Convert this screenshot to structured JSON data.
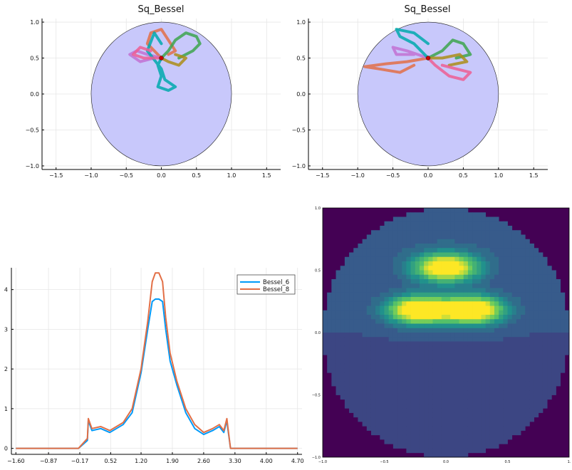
{
  "chart_data": [
    {
      "type": "scatter",
      "title": "Sq_Bessel",
      "xlim": [
        -1.7,
        1.7
      ],
      "ylim": [
        -1.05,
        1.05
      ],
      "xticks": [
        "-1.5",
        "-1.0",
        "-0.5",
        "0.0",
        "0.5",
        "1.0",
        "1.5"
      ],
      "yticks": [
        "1.0",
        "0.5",
        "0.0",
        "-0.5",
        "-1.0"
      ],
      "disk": {
        "center": [
          0,
          0
        ],
        "radius": 1.0,
        "color": "#c8c8fb"
      },
      "start_point": {
        "x": 0.0,
        "y": 0.5,
        "color": "#cc0000"
      },
      "paths": [
        {
          "color": "#e26f46",
          "points": [
            [
              0,
              0.5
            ],
            [
              -0.1,
              0.6
            ],
            [
              -0.2,
              0.7
            ],
            [
              -0.15,
              0.85
            ],
            [
              0.0,
              0.9
            ],
            [
              0.1,
              0.75
            ],
            [
              0.2,
              0.6
            ],
            [
              0.1,
              0.55
            ]
          ]
        },
        {
          "color": "#3da44d",
          "points": [
            [
              0,
              0.5
            ],
            [
              0.1,
              0.6
            ],
            [
              0.2,
              0.75
            ],
            [
              0.35,
              0.85
            ],
            [
              0.5,
              0.8
            ],
            [
              0.55,
              0.7
            ],
            [
              0.45,
              0.6
            ],
            [
              0.25,
              0.5
            ]
          ]
        },
        {
          "color": "#c271d2",
          "points": [
            [
              0,
              0.5
            ],
            [
              -0.2,
              0.55
            ],
            [
              -0.35,
              0.6
            ],
            [
              -0.45,
              0.55
            ],
            [
              -0.3,
              0.45
            ],
            [
              -0.1,
              0.5
            ]
          ]
        },
        {
          "color": "#ac8d18",
          "points": [
            [
              0,
              0.5
            ],
            [
              0.1,
              0.45
            ],
            [
              0.25,
              0.4
            ],
            [
              0.35,
              0.5
            ],
            [
              0.2,
              0.55
            ]
          ]
        },
        {
          "color": "#00a9ad",
          "points": [
            [
              0,
              0.5
            ],
            [
              -0.05,
              0.4
            ],
            [
              0.0,
              0.25
            ],
            [
              -0.05,
              0.1
            ],
            [
              0.1,
              0.05
            ],
            [
              0.2,
              0.1
            ],
            [
              0.05,
              0.2
            ],
            [
              0.0,
              0.35
            ],
            [
              -0.2,
              0.6
            ],
            [
              -0.1,
              0.85
            ],
            [
              0.0,
              0.7
            ]
          ]
        },
        {
          "color": "#ed5e93",
          "points": [
            [
              0,
              0.5
            ],
            [
              -0.25,
              0.5
            ],
            [
              -0.4,
              0.55
            ],
            [
              -0.3,
              0.65
            ],
            [
              -0.15,
              0.6
            ]
          ]
        }
      ]
    },
    {
      "type": "scatter",
      "title": "Sq_Bessel",
      "xlim": [
        -1.7,
        1.7
      ],
      "ylim": [
        -1.05,
        1.05
      ],
      "xticks": [
        "-1.5",
        "-1.0",
        "-0.5",
        "0.0",
        "0.5",
        "1.0",
        "1.5"
      ],
      "yticks": [
        "1.0",
        "0.5",
        "0.0",
        "-0.5",
        "-1.0"
      ],
      "disk": {
        "center": [
          0,
          0
        ],
        "radius": 1.0,
        "color": "#c8c8fb"
      },
      "start_point": {
        "x": 0.0,
        "y": 0.5,
        "color": "#cc0000"
      },
      "paths": [
        {
          "color": "#e26f46",
          "points": [
            [
              0,
              0.5
            ],
            [
              -0.3,
              0.45
            ],
            [
              -0.6,
              0.42
            ],
            [
              -0.9,
              0.38
            ],
            [
              -0.7,
              0.35
            ],
            [
              -0.4,
              0.3
            ],
            [
              -0.2,
              0.4
            ]
          ]
        },
        {
          "color": "#3da44d",
          "points": [
            [
              0,
              0.5
            ],
            [
              0.2,
              0.6
            ],
            [
              0.35,
              0.75
            ],
            [
              0.5,
              0.7
            ],
            [
              0.6,
              0.55
            ],
            [
              0.4,
              0.5
            ]
          ]
        },
        {
          "color": "#c271d2",
          "points": [
            [
              0,
              0.5
            ],
            [
              -0.3,
              0.6
            ],
            [
              -0.5,
              0.65
            ],
            [
              -0.45,
              0.55
            ],
            [
              -0.2,
              0.55
            ]
          ]
        },
        {
          "color": "#ac8d18",
          "points": [
            [
              0,
              0.5
            ],
            [
              0.2,
              0.5
            ],
            [
              0.45,
              0.55
            ],
            [
              0.55,
              0.45
            ],
            [
              0.3,
              0.4
            ]
          ]
        },
        {
          "color": "#00a9ad",
          "points": [
            [
              0,
              0.5
            ],
            [
              -0.2,
              0.7
            ],
            [
              -0.4,
              0.8
            ],
            [
              -0.45,
              0.9
            ],
            [
              -0.2,
              0.85
            ],
            [
              0.0,
              0.7
            ]
          ]
        },
        {
          "color": "#ed5e93",
          "points": [
            [
              0,
              0.5
            ],
            [
              0.1,
              0.4
            ],
            [
              0.3,
              0.25
            ],
            [
              0.5,
              0.2
            ],
            [
              0.6,
              0.3
            ],
            [
              0.4,
              0.35
            ],
            [
              0.2,
              0.4
            ]
          ]
        }
      ]
    },
    {
      "type": "line",
      "title": "",
      "xlim": [
        -1.7,
        4.8
      ],
      "ylim": [
        -0.15,
        4.55
      ],
      "xticks": [
        -1.6,
        -0.87,
        -0.17,
        0.52,
        1.2,
        1.9,
        2.6,
        3.3,
        4.0,
        4.7
      ],
      "xtick_labels": [
        "-1.60",
        "-0.87",
        "-0.17",
        "0.52",
        "1.20",
        "1.90",
        "2.60",
        "3.30",
        "4.00",
        "4.70"
      ],
      "yticks": [
        0,
        1,
        2,
        3,
        4
      ],
      "legend": "top-right",
      "series": [
        {
          "name": "Bessel_6",
          "color": "#009af9",
          "x": [
            -1.6,
            -0.2,
            0.0,
            0.02,
            0.1,
            0.3,
            0.5,
            0.8,
            1.0,
            1.2,
            1.35,
            1.45,
            1.52,
            1.6,
            1.68,
            1.75,
            1.85,
            2.0,
            2.2,
            2.4,
            2.6,
            2.8,
            2.95,
            3.05,
            3.12,
            3.14,
            3.2,
            4.7
          ],
          "values": [
            0,
            0,
            0.2,
            0.7,
            0.45,
            0.5,
            0.4,
            0.6,
            0.9,
            1.9,
            3.0,
            3.7,
            3.76,
            3.76,
            3.7,
            3.0,
            2.2,
            1.6,
            0.9,
            0.5,
            0.35,
            0.45,
            0.55,
            0.4,
            0.7,
            0.5,
            0,
            0
          ]
        },
        {
          "name": "Bessel_8",
          "color": "#e26f46",
          "x": [
            -1.6,
            -0.2,
            0.0,
            0.02,
            0.1,
            0.3,
            0.5,
            0.8,
            1.0,
            1.2,
            1.35,
            1.45,
            1.52,
            1.6,
            1.68,
            1.75,
            1.85,
            2.0,
            2.2,
            2.4,
            2.6,
            2.8,
            2.95,
            3.05,
            3.12,
            3.14,
            3.2,
            4.7
          ],
          "values": [
            0,
            0,
            0.25,
            0.75,
            0.5,
            0.55,
            0.45,
            0.65,
            1.0,
            2.0,
            3.2,
            4.2,
            4.42,
            4.42,
            4.2,
            3.3,
            2.4,
            1.7,
            1.0,
            0.6,
            0.4,
            0.5,
            0.6,
            0.45,
            0.75,
            0.55,
            0,
            0
          ]
        }
      ]
    },
    {
      "type": "heatmap",
      "title": "",
      "xlim": [
        -1.0,
        1.0
      ],
      "ylim": [
        -1.0,
        1.0
      ],
      "xticks": [
        "-1.0",
        "-0.5",
        "0.0",
        "0.5",
        "1."
      ],
      "yticks": [
        "1.0",
        "0.5",
        "0.0",
        "-0.5",
        "-1.0"
      ],
      "background_color": "#440154",
      "colormap": [
        "#440154",
        "#3b528b",
        "#21918c",
        "#5ec962",
        "#fde725"
      ],
      "peaks": [
        {
          "x": 0.0,
          "y": 0.52,
          "intensity": 0.95
        },
        {
          "x": -0.22,
          "y": 0.18,
          "intensity": 1.0
        },
        {
          "x": 0.22,
          "y": 0.18,
          "intensity": 1.0
        }
      ]
    }
  ]
}
